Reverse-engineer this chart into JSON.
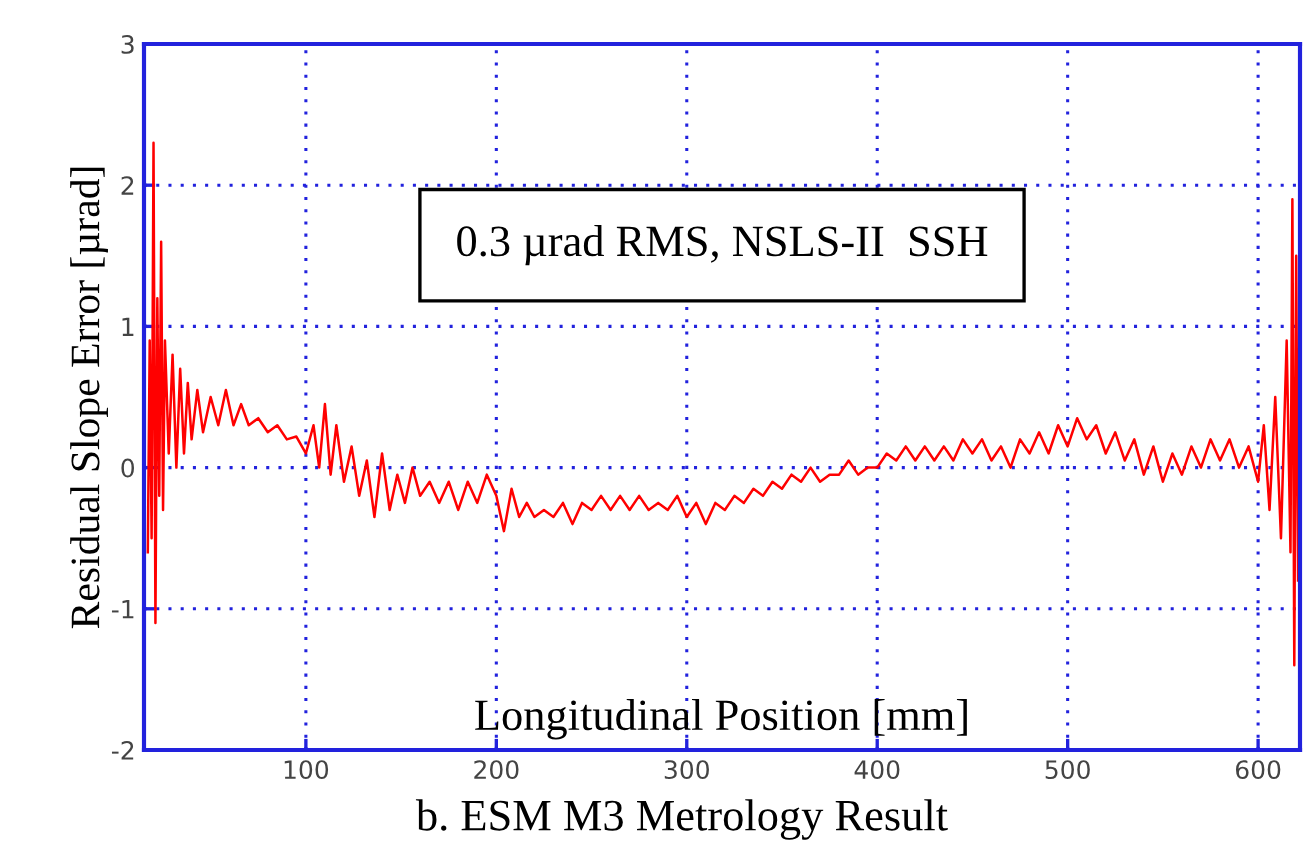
{
  "chart_data": {
    "type": "line",
    "xlabel": "Longitudinal Position [mm]",
    "ylabel": "Residual Slope Error [µrad]",
    "annotations": [
      "0.3 µrad RMS, NSLS-II  SSH",
      "b. ESM M3 Metrology Result"
    ],
    "xlim": [
      15,
      622
    ],
    "ylim": [
      -2,
      3
    ],
    "xticks": [
      100,
      200,
      300,
      400,
      500,
      600
    ],
    "yticks": [
      -2,
      -1,
      0,
      1,
      2,
      3
    ],
    "grid": true,
    "marker": "none",
    "line_style": "solid",
    "series": [
      {
        "color": "#ff0000",
        "x": [
          17,
          18,
          19,
          20,
          21,
          22,
          23,
          24,
          25,
          26,
          28,
          30,
          32,
          34,
          36,
          38,
          40,
          43,
          46,
          50,
          54,
          58,
          62,
          66,
          70,
          75,
          80,
          85,
          90,
          95,
          100,
          104,
          107,
          110,
          113,
          116,
          120,
          124,
          128,
          132,
          136,
          140,
          144,
          148,
          152,
          156,
          160,
          165,
          170,
          175,
          180,
          185,
          190,
          195,
          200,
          204,
          208,
          212,
          216,
          220,
          225,
          230,
          235,
          240,
          245,
          250,
          255,
          260,
          265,
          270,
          275,
          280,
          285,
          290,
          295,
          300,
          305,
          310,
          315,
          320,
          325,
          330,
          335,
          340,
          345,
          350,
          355,
          360,
          365,
          370,
          375,
          380,
          385,
          390,
          395,
          400,
          405,
          410,
          415,
          420,
          425,
          430,
          435,
          440,
          445,
          450,
          455,
          460,
          465,
          470,
          475,
          480,
          485,
          490,
          495,
          500,
          505,
          510,
          515,
          520,
          525,
          530,
          535,
          540,
          545,
          550,
          555,
          560,
          565,
          570,
          575,
          580,
          585,
          590,
          595,
          600,
          603,
          606,
          609,
          612,
          615,
          617,
          618,
          619,
          620,
          621
        ],
        "values": [
          -0.6,
          0.9,
          -0.5,
          2.3,
          -1.1,
          1.2,
          -0.2,
          1.6,
          -0.3,
          0.9,
          0.1,
          0.8,
          0.0,
          0.7,
          0.1,
          0.6,
          0.2,
          0.55,
          0.25,
          0.5,
          0.3,
          0.55,
          0.3,
          0.45,
          0.3,
          0.35,
          0.25,
          0.3,
          0.2,
          0.22,
          0.1,
          0.3,
          0.0,
          0.45,
          -0.05,
          0.3,
          -0.1,
          0.15,
          -0.2,
          0.05,
          -0.35,
          0.1,
          -0.3,
          -0.05,
          -0.25,
          0.0,
          -0.2,
          -0.1,
          -0.25,
          -0.1,
          -0.3,
          -0.1,
          -0.25,
          -0.05,
          -0.2,
          -0.45,
          -0.15,
          -0.35,
          -0.25,
          -0.35,
          -0.3,
          -0.35,
          -0.25,
          -0.4,
          -0.25,
          -0.3,
          -0.2,
          -0.3,
          -0.2,
          -0.3,
          -0.2,
          -0.3,
          -0.25,
          -0.3,
          -0.2,
          -0.35,
          -0.25,
          -0.4,
          -0.25,
          -0.3,
          -0.2,
          -0.25,
          -0.15,
          -0.2,
          -0.1,
          -0.15,
          -0.05,
          -0.1,
          0.0,
          -0.1,
          -0.05,
          -0.05,
          0.05,
          -0.05,
          0.0,
          0.0,
          0.1,
          0.05,
          0.15,
          0.05,
          0.15,
          0.05,
          0.15,
          0.05,
          0.2,
          0.1,
          0.2,
          0.05,
          0.15,
          0.0,
          0.2,
          0.1,
          0.25,
          0.1,
          0.3,
          0.15,
          0.35,
          0.2,
          0.3,
          0.1,
          0.25,
          0.05,
          0.2,
          -0.05,
          0.15,
          -0.1,
          0.1,
          -0.05,
          0.15,
          0.0,
          0.2,
          0.05,
          0.2,
          0.0,
          0.15,
          -0.1,
          0.3,
          -0.3,
          0.5,
          -0.5,
          0.9,
          -0.6,
          1.9,
          -1.4,
          1.5,
          -0.8
        ]
      }
    ]
  }
}
